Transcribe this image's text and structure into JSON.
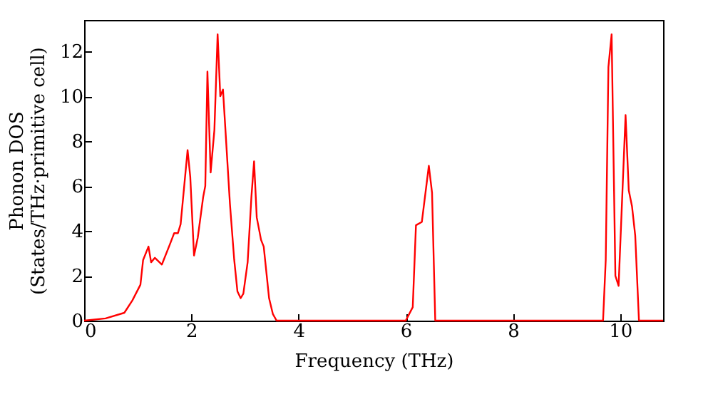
{
  "chart_data": {
    "type": "line",
    "xlabel": "Frequency (THz)",
    "ylabel": "Phonon DOS\n(States/THz·primitive cell)",
    "xlim": [
      0,
      10.8
    ],
    "ylim": [
      0,
      13.4
    ],
    "xticks": [
      0,
      2,
      4,
      6,
      8,
      10
    ],
    "yticks": [
      0,
      2,
      4,
      6,
      8,
      10,
      12
    ],
    "grid": false,
    "marker": "none",
    "line_style": "solid",
    "x": [
      0,
      0.4,
      0.75,
      0.9,
      1.05,
      1.1,
      1.2,
      1.25,
      1.32,
      1.45,
      1.6,
      1.68,
      1.75,
      1.8,
      1.93,
      1.98,
      2.05,
      2.12,
      2.22,
      2.26,
      2.3,
      2.36,
      2.43,
      2.49,
      2.54,
      2.59,
      2.72,
      2.8,
      2.86,
      2.92,
      2.97,
      3.05,
      3.12,
      3.17,
      3.22,
      3.3,
      3.35,
      3.45,
      3.52,
      3.59,
      6.0,
      6.13,
      6.19,
      6.3,
      6.43,
      6.49,
      6.55,
      9.68,
      9.73,
      9.78,
      9.84,
      9.91,
      9.97,
      10.1,
      10.16,
      10.22,
      10.28,
      10.35,
      10.8
    ],
    "series": [
      {
        "color": "#ff0000",
        "values": [
          0,
          0.1,
          0.35,
          0.9,
          1.6,
          2.7,
          3.3,
          2.6,
          2.8,
          2.5,
          3.4,
          3.9,
          3.9,
          4.3,
          7.6,
          6.4,
          2.9,
          3.7,
          5.5,
          6.0,
          11.1,
          6.6,
          8.5,
          12.76,
          10.0,
          10.3,
          5.2,
          2.7,
          1.3,
          1.0,
          1.2,
          2.6,
          5.5,
          7.1,
          4.6,
          3.6,
          3.3,
          1.0,
          0.3,
          0,
          0,
          0.6,
          4.25,
          4.4,
          6.9,
          5.7,
          0,
          0,
          2.7,
          11.3,
          12.76,
          2.0,
          1.55,
          9.16,
          5.8,
          5.1,
          3.8,
          0,
          0
        ]
      }
    ]
  }
}
